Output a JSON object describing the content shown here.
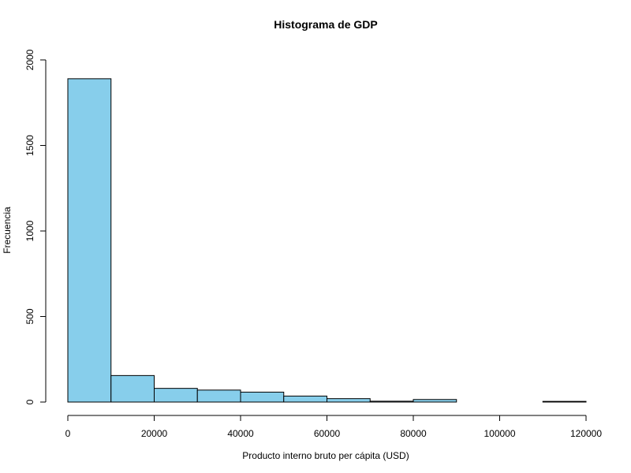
{
  "chart_data": {
    "type": "bar",
    "subtype": "histogram",
    "title": "Histograma de GDP",
    "xlabel": "Producto interno bruto per cápita (USD)",
    "ylabel": "Frecuencia",
    "bins": [
      {
        "from": 0,
        "to": 10000,
        "count": 1890
      },
      {
        "from": 10000,
        "to": 20000,
        "count": 155
      },
      {
        "from": 20000,
        "to": 30000,
        "count": 80
      },
      {
        "from": 30000,
        "to": 40000,
        "count": 70
      },
      {
        "from": 40000,
        "to": 50000,
        "count": 58
      },
      {
        "from": 50000,
        "to": 60000,
        "count": 35
      },
      {
        "from": 60000,
        "to": 70000,
        "count": 20
      },
      {
        "from": 70000,
        "to": 80000,
        "count": 5
      },
      {
        "from": 80000,
        "to": 90000,
        "count": 15
      },
      {
        "from": 90000,
        "to": 100000,
        "count": 0
      },
      {
        "from": 100000,
        "to": 110000,
        "count": 0
      },
      {
        "from": 110000,
        "to": 120000,
        "count": 4
      }
    ],
    "xlim": [
      0,
      120000
    ],
    "ylim": [
      0,
      2000
    ],
    "x_ticks": [
      0,
      20000,
      40000,
      60000,
      80000,
      100000,
      120000
    ],
    "x_tick_labels": [
      "0",
      "20000",
      "40000",
      "60000",
      "80000",
      "100000",
      "120000"
    ],
    "y_ticks": [
      0,
      500,
      1000,
      1500,
      2000
    ],
    "y_tick_labels": [
      "0",
      "500",
      "1000",
      "1500",
      "2000"
    ],
    "bar_color": "#87CEEB",
    "bar_border_color": "#000000",
    "grid": false,
    "legend": "none"
  }
}
